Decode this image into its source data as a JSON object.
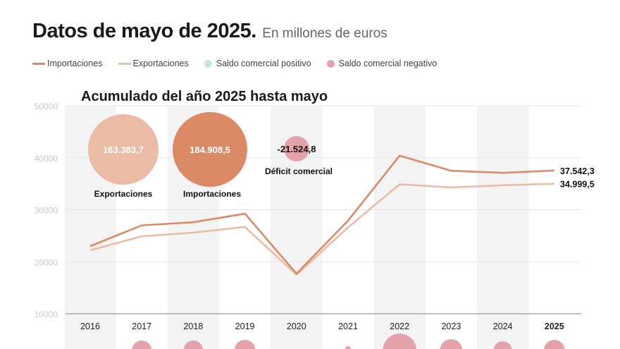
{
  "header": {
    "title": "Datos de mayo de 2025.",
    "subtitle": "En millones de euros"
  },
  "legend": [
    {
      "label": "Importaciones",
      "type": "line",
      "color": "#dc8a66"
    },
    {
      "label": "Exportaciones",
      "type": "line",
      "color": "#ecbba6"
    },
    {
      "label": "Saldo comercial positivo",
      "type": "dot",
      "color": "#c5e4e8"
    },
    {
      "label": "Saldo comercial negativo",
      "type": "dot",
      "color": "#e4a3ab"
    }
  ],
  "chart_data": {
    "type": "line",
    "title": "Acumulado del año 2025 hasta mayo",
    "categories": [
      "2016",
      "2017",
      "2018",
      "2019",
      "2020",
      "2021",
      "2022",
      "2023",
      "2024",
      "2025"
    ],
    "highlight_category": "2025",
    "ylim": [
      10000,
      50000
    ],
    "yticks": [
      "10000",
      "20000",
      "30000",
      "40000",
      "50000"
    ],
    "grid": true,
    "series": [
      {
        "name": "Importaciones",
        "color": "#dc8a66",
        "values": [
          23000,
          27000,
          27600,
          29250,
          17700,
          27900,
          40400,
          37500,
          37100,
          37542.3
        ],
        "end_label": "37.542,3"
      },
      {
        "name": "Exportaciones",
        "color": "#ecbba6",
        "values": [
          22200,
          24900,
          25600,
          26700,
          17500,
          26600,
          34900,
          34300,
          34700,
          34999.5
        ],
        "end_label": "34.999,5"
      }
    ],
    "summary": [
      {
        "label": "Exportaciones",
        "value": "163.383,7",
        "color": "#ecbba6"
      },
      {
        "label": "Importaciones",
        "value": "184.908,5",
        "color": "#dc8a66"
      },
      {
        "label": "Déficit comercial",
        "value": "-21.524,8",
        "color": "#e4a3ab"
      }
    ]
  }
}
